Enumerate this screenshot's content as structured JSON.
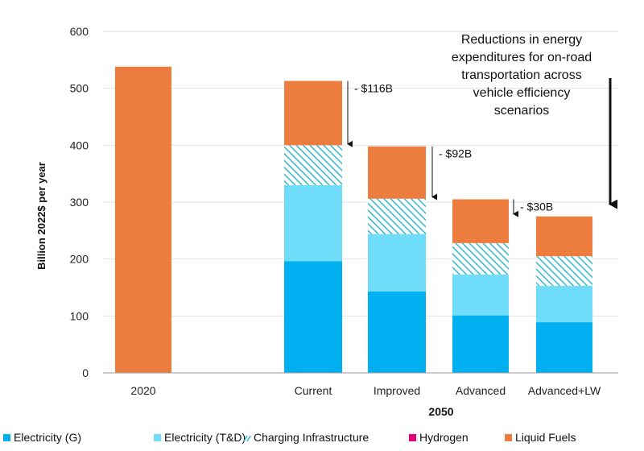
{
  "chart_data": {
    "type": "bar",
    "stacked": true,
    "ylabel": "Billion 2022$ per year",
    "xlabel": "2050",
    "ylim": [
      0,
      600
    ],
    "yticks": [
      0,
      100,
      200,
      300,
      400,
      500,
      600
    ],
    "categories": [
      "2020",
      "Current",
      "Improved",
      "Advanced",
      "Advanced+LW"
    ],
    "series": [
      {
        "name": "Electricity (G)",
        "color": "#00b0f0",
        "pattern": "solid",
        "values": [
          0,
          196,
          143,
          101,
          89
        ]
      },
      {
        "name": "Electricity (T&D)",
        "color": "#6fdcfa",
        "pattern": "solid",
        "values": [
          0,
          134,
          101,
          72,
          64
        ]
      },
      {
        "name": "Charging Infrastructure",
        "color": "#33b8cc",
        "pattern": "hatch",
        "values": [
          0,
          70,
          62,
          55,
          52
        ]
      },
      {
        "name": "Hydrogen",
        "color": "#e6007e",
        "pattern": "solid",
        "values": [
          0,
          0,
          0,
          0,
          0
        ]
      },
      {
        "name": "Liquid Fuels",
        "color": "#ed7d3f",
        "pattern": "solid",
        "values": [
          538,
          113,
          92,
          77,
          70
        ]
      }
    ],
    "annotations": [
      {
        "text": "- $116B",
        "from_value": 513,
        "to_value": 398,
        "category_index": 1
      },
      {
        "text": "- $92B",
        "from_value": 398,
        "to_value": 305,
        "category_index": 2
      },
      {
        "text": "- $30B",
        "from_value": 305,
        "to_value": 275,
        "category_index": 3
      }
    ],
    "note": {
      "lines": [
        "Reductions in energy",
        "expenditures for on-road",
        "transportation across",
        "vehicle efficiency",
        "scenarios"
      ],
      "arrow_from_value": 520,
      "arrow_to_value": 285
    },
    "legend_position": "bottom"
  }
}
